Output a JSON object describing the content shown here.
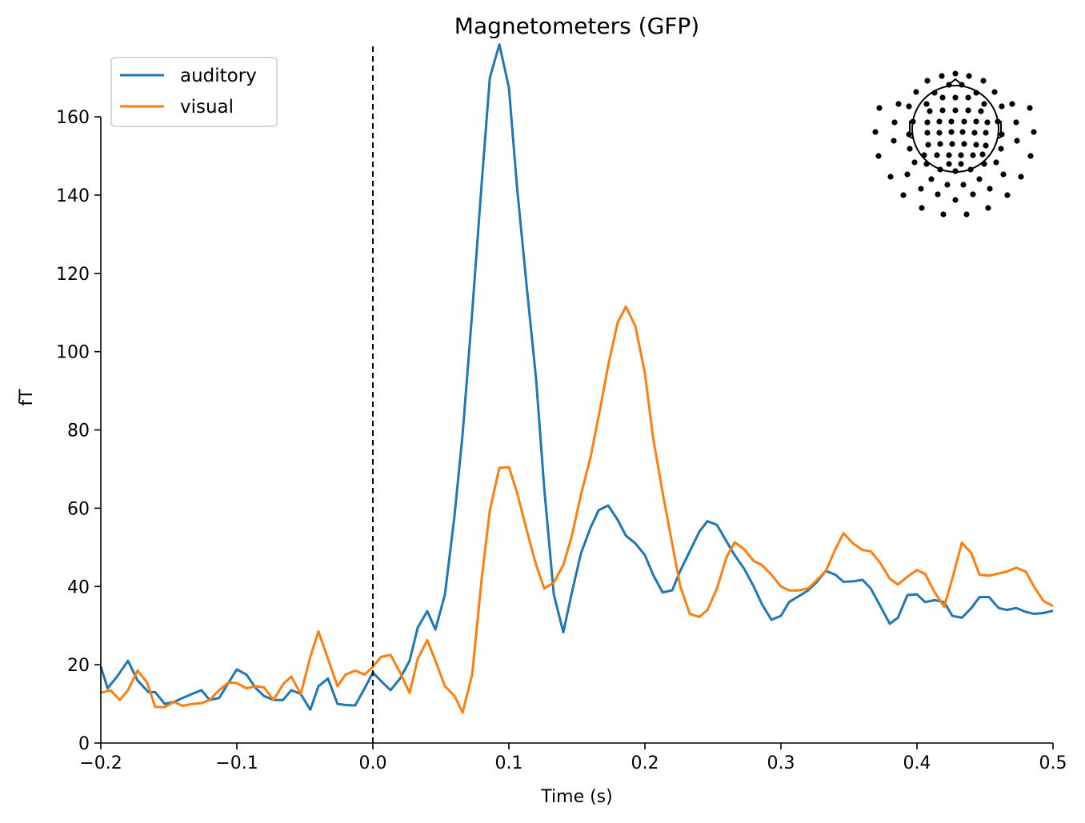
{
  "chart_data": {
    "type": "line",
    "title": "Magnetometers (GFP)",
    "xlabel": "Time (s)",
    "ylabel": "fT",
    "xlim": [
      -0.2,
      0.5
    ],
    "ylim": [
      0,
      178
    ],
    "xticks": [
      -0.2,
      -0.1,
      0.0,
      0.1,
      0.2,
      0.3,
      0.4,
      0.5
    ],
    "xtick_labels": [
      "−0.2",
      "−0.1",
      "0.0",
      "0.1",
      "0.2",
      "0.3",
      "0.4",
      "0.5"
    ],
    "yticks": [
      0,
      20,
      40,
      60,
      80,
      100,
      120,
      140,
      160
    ],
    "ytick_labels": [
      "0",
      "20",
      "40",
      "60",
      "80",
      "100",
      "120",
      "140",
      "160"
    ],
    "event_marker_x": 0.0,
    "legend_position": "top-left",
    "grid": false,
    "series": [
      {
        "name": "auditory",
        "color": "#1f77b4",
        "points": [
          [
            -0.2,
            19.5
          ],
          [
            -0.195,
            14.0
          ],
          [
            -0.188,
            17.0
          ],
          [
            -0.18,
            21.0
          ],
          [
            -0.173,
            16.0
          ],
          [
            -0.165,
            13.0
          ],
          [
            -0.16,
            13.0
          ],
          [
            -0.153,
            10.0
          ],
          [
            -0.146,
            10.5
          ],
          [
            -0.14,
            11.5
          ],
          [
            -0.133,
            12.5
          ],
          [
            -0.126,
            13.5
          ],
          [
            -0.12,
            11.0
          ],
          [
            -0.113,
            11.5
          ],
          [
            -0.106,
            15.5
          ],
          [
            -0.1,
            18.8
          ],
          [
            -0.093,
            17.5
          ],
          [
            -0.086,
            14.0
          ],
          [
            -0.08,
            12.0
          ],
          [
            -0.073,
            11.0
          ],
          [
            -0.066,
            11.0
          ],
          [
            -0.06,
            13.5
          ],
          [
            -0.053,
            12.5
          ],
          [
            -0.046,
            8.5
          ],
          [
            -0.04,
            14.5
          ],
          [
            -0.033,
            16.5
          ],
          [
            -0.026,
            10.0
          ],
          [
            -0.02,
            9.7
          ],
          [
            -0.013,
            9.6
          ],
          [
            -0.006,
            14.0
          ],
          [
            0.0,
            18.0
          ],
          [
            0.007,
            15.5
          ],
          [
            0.013,
            13.5
          ],
          [
            0.02,
            16.5
          ],
          [
            0.027,
            21.0
          ],
          [
            0.033,
            29.5
          ],
          [
            0.04,
            33.7
          ],
          [
            0.046,
            29.0
          ],
          [
            0.053,
            38.0
          ],
          [
            0.06,
            58.0
          ],
          [
            0.066,
            79.0
          ],
          [
            0.073,
            110.0
          ],
          [
            0.08,
            143.0
          ],
          [
            0.086,
            170.0
          ],
          [
            0.093,
            178.5
          ],
          [
            0.1,
            167.5
          ],
          [
            0.106,
            142.0
          ],
          [
            0.113,
            117.0
          ],
          [
            0.12,
            93.0
          ],
          [
            0.126,
            65.0
          ],
          [
            0.133,
            38.0
          ],
          [
            0.14,
            28.3
          ],
          [
            0.146,
            38.0
          ],
          [
            0.153,
            48.5
          ],
          [
            0.16,
            55.0
          ],
          [
            0.166,
            59.5
          ],
          [
            0.173,
            60.7
          ],
          [
            0.18,
            57.0
          ],
          [
            0.186,
            53.0
          ],
          [
            0.193,
            51.0
          ],
          [
            0.2,
            48.0
          ],
          [
            0.206,
            43.0
          ],
          [
            0.213,
            38.5
          ],
          [
            0.22,
            39.0
          ],
          [
            0.226,
            44.0
          ],
          [
            0.233,
            49.0
          ],
          [
            0.24,
            54.0
          ],
          [
            0.246,
            56.7
          ],
          [
            0.253,
            55.7
          ],
          [
            0.26,
            51.5
          ],
          [
            0.266,
            48.0
          ],
          [
            0.273,
            44.5
          ],
          [
            0.28,
            40.0
          ],
          [
            0.286,
            35.5
          ],
          [
            0.293,
            31.5
          ],
          [
            0.3,
            32.5
          ],
          [
            0.306,
            36.0
          ],
          [
            0.313,
            37.5
          ],
          [
            0.32,
            39.0
          ],
          [
            0.326,
            41.0
          ],
          [
            0.333,
            44.0
          ],
          [
            0.34,
            43.0
          ],
          [
            0.346,
            41.2
          ],
          [
            0.353,
            41.3
          ],
          [
            0.36,
            41.7
          ],
          [
            0.366,
            39.5
          ],
          [
            0.373,
            35.0
          ],
          [
            0.38,
            30.5
          ],
          [
            0.386,
            32.0
          ],
          [
            0.393,
            37.8
          ],
          [
            0.4,
            38.0
          ],
          [
            0.406,
            36.0
          ],
          [
            0.413,
            36.5
          ],
          [
            0.42,
            36.0
          ],
          [
            0.426,
            32.5
          ],
          [
            0.433,
            32.0
          ],
          [
            0.44,
            34.5
          ],
          [
            0.446,
            37.3
          ],
          [
            0.453,
            37.3
          ],
          [
            0.46,
            34.5
          ],
          [
            0.466,
            34.0
          ],
          [
            0.473,
            34.5
          ],
          [
            0.48,
            33.5
          ],
          [
            0.486,
            33.0
          ],
          [
            0.493,
            33.2
          ],
          [
            0.5,
            33.8
          ]
        ]
      },
      {
        "name": "visual",
        "color": "#ff7f0e",
        "points": [
          [
            -0.2,
            12.8
          ],
          [
            -0.193,
            13.5
          ],
          [
            -0.186,
            11.0
          ],
          [
            -0.18,
            13.5
          ],
          [
            -0.173,
            18.5
          ],
          [
            -0.166,
            15.5
          ],
          [
            -0.16,
            9.2
          ],
          [
            -0.153,
            9.2
          ],
          [
            -0.146,
            10.5
          ],
          [
            -0.14,
            9.5
          ],
          [
            -0.133,
            10.0
          ],
          [
            -0.126,
            10.2
          ],
          [
            -0.12,
            11.0
          ],
          [
            -0.113,
            13.5
          ],
          [
            -0.106,
            15.5
          ],
          [
            -0.1,
            15.3
          ],
          [
            -0.093,
            14.0
          ],
          [
            -0.086,
            14.5
          ],
          [
            -0.08,
            14.2
          ],
          [
            -0.073,
            11.0
          ],
          [
            -0.066,
            15.0
          ],
          [
            -0.06,
            17.0
          ],
          [
            -0.053,
            12.5
          ],
          [
            -0.046,
            22.0
          ],
          [
            -0.04,
            28.5
          ],
          [
            -0.033,
            21.5
          ],
          [
            -0.026,
            14.5
          ],
          [
            -0.02,
            17.5
          ],
          [
            -0.013,
            18.5
          ],
          [
            -0.006,
            17.5
          ],
          [
            0.0,
            19.5
          ],
          [
            0.006,
            22.0
          ],
          [
            0.013,
            22.5
          ],
          [
            0.02,
            18.0
          ],
          [
            0.027,
            12.8
          ],
          [
            0.033,
            21.5
          ],
          [
            0.04,
            26.3
          ],
          [
            0.046,
            21.0
          ],
          [
            0.053,
            14.5
          ],
          [
            0.06,
            12.0
          ],
          [
            0.066,
            7.8
          ],
          [
            0.073,
            17.5
          ],
          [
            0.08,
            42.0
          ],
          [
            0.086,
            59.5
          ],
          [
            0.093,
            70.3
          ],
          [
            0.1,
            70.5
          ],
          [
            0.106,
            64.0
          ],
          [
            0.113,
            54.5
          ],
          [
            0.12,
            45.5
          ],
          [
            0.126,
            39.5
          ],
          [
            0.133,
            41.0
          ],
          [
            0.14,
            45.5
          ],
          [
            0.146,
            52.5
          ],
          [
            0.153,
            63.5
          ],
          [
            0.16,
            73.0
          ],
          [
            0.166,
            83.5
          ],
          [
            0.173,
            96.5
          ],
          [
            0.18,
            107.5
          ],
          [
            0.186,
            111.5
          ],
          [
            0.193,
            106.5
          ],
          [
            0.2,
            94.5
          ],
          [
            0.206,
            78.0
          ],
          [
            0.213,
            64.0
          ],
          [
            0.22,
            51.0
          ],
          [
            0.226,
            40.0
          ],
          [
            0.233,
            33.0
          ],
          [
            0.24,
            32.2
          ],
          [
            0.246,
            34.0
          ],
          [
            0.253,
            39.5
          ],
          [
            0.26,
            47.5
          ],
          [
            0.266,
            51.3
          ],
          [
            0.273,
            49.5
          ],
          [
            0.28,
            46.5
          ],
          [
            0.286,
            45.5
          ],
          [
            0.293,
            43.0
          ],
          [
            0.3,
            40.0
          ],
          [
            0.306,
            39.0
          ],
          [
            0.313,
            39.0
          ],
          [
            0.32,
            39.5
          ],
          [
            0.326,
            41.5
          ],
          [
            0.333,
            44.0
          ],
          [
            0.34,
            49.5
          ],
          [
            0.346,
            53.6
          ],
          [
            0.353,
            51.0
          ],
          [
            0.36,
            49.3
          ],
          [
            0.366,
            49.0
          ],
          [
            0.373,
            46.0
          ],
          [
            0.38,
            42.0
          ],
          [
            0.386,
            40.5
          ],
          [
            0.393,
            42.5
          ],
          [
            0.4,
            44.2
          ],
          [
            0.406,
            43.2
          ],
          [
            0.413,
            38.5
          ],
          [
            0.42,
            34.8
          ],
          [
            0.426,
            42.0
          ],
          [
            0.433,
            51.2
          ],
          [
            0.44,
            48.5
          ],
          [
            0.446,
            43.0
          ],
          [
            0.453,
            42.8
          ],
          [
            0.46,
            43.3
          ],
          [
            0.466,
            43.8
          ],
          [
            0.473,
            44.8
          ],
          [
            0.48,
            43.8
          ],
          [
            0.486,
            40.0
          ],
          [
            0.493,
            36.3
          ],
          [
            0.5,
            35.0
          ]
        ]
      }
    ]
  }
}
